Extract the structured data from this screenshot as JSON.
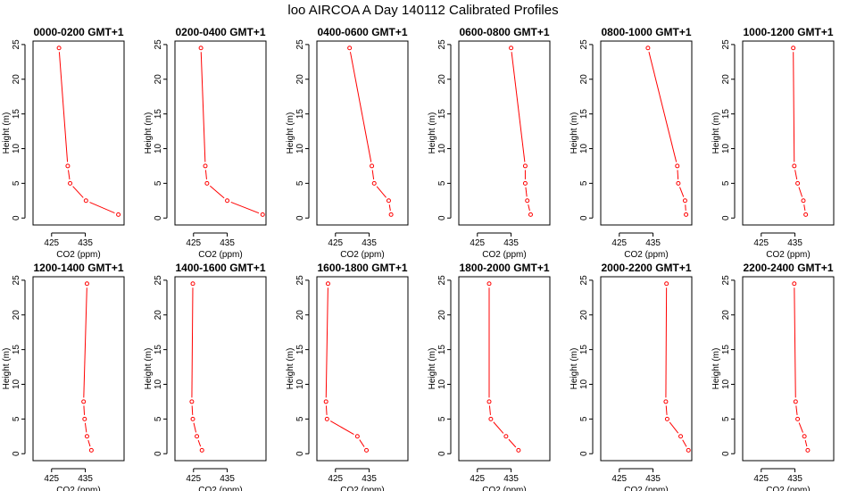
{
  "chart_data": {
    "title": "loo AIRCOA A  Day 140112  Calibrated Profiles",
    "type": "line",
    "layout": "2 rows x 6 columns",
    "xlabel": "CO2 (ppm)",
    "ylabel": "Height (m)",
    "xlim": [
      419.5,
      446.5
    ],
    "ylim": [
      -1,
      25.5
    ],
    "xticks": [
      425,
      435
    ],
    "yticks": [
      0,
      5,
      10,
      15,
      20,
      25
    ],
    "grid": false,
    "legend": "none",
    "colors": {
      "line": "#ff0000",
      "marker_edge": "#ff0000",
      "marker_fill": "#ffffff"
    },
    "panels": [
      {
        "title": "0000-0200 GMT+1",
        "x": [
          444.8,
          435.2,
          430.5,
          429.8,
          427.2
        ],
        "y": [
          0.5,
          2.5,
          5.0,
          7.5,
          24.5
        ]
      },
      {
        "title": "0200-0400 GMT+1",
        "x": [
          445.5,
          435.0,
          429.0,
          428.5,
          427.2
        ],
        "y": [
          0.5,
          2.5,
          5.0,
          7.5,
          24.5
        ]
      },
      {
        "title": "0400-0600 GMT+1",
        "x": [
          441.5,
          440.8,
          436.5,
          435.8,
          429.2
        ],
        "y": [
          0.5,
          2.5,
          5.0,
          7.5,
          24.5
        ]
      },
      {
        "title": "0600-0800 GMT+1",
        "x": [
          440.8,
          439.8,
          439.2,
          439.2,
          435.0
        ],
        "y": [
          0.5,
          2.5,
          5.0,
          7.5,
          24.5
        ]
      },
      {
        "title": "0800-1000 GMT+1",
        "x": [
          444.8,
          444.5,
          442.5,
          442.2,
          433.5
        ],
        "y": [
          0.5,
          2.5,
          5.0,
          7.5,
          24.5
        ]
      },
      {
        "title": "1000-1200 GMT+1",
        "x": [
          438.2,
          437.5,
          435.8,
          434.8,
          434.5
        ],
        "y": [
          0.5,
          2.5,
          5.0,
          7.5,
          24.5
        ]
      },
      {
        "title": "1200-1400 GMT+1",
        "x": [
          436.8,
          435.5,
          434.8,
          434.5,
          435.5
        ],
        "y": [
          0.5,
          2.5,
          5.0,
          7.5,
          24.5
        ]
      },
      {
        "title": "1400-1600 GMT+1",
        "x": [
          427.5,
          426.0,
          424.8,
          424.5,
          424.8
        ],
        "y": [
          0.5,
          2.5,
          5.0,
          7.5,
          24.5
        ]
      },
      {
        "title": "1600-1800 GMT+1",
        "x": [
          434.2,
          431.5,
          422.5,
          422.2,
          422.8
        ],
        "y": [
          0.5,
          2.5,
          5.0,
          7.5,
          24.5
        ]
      },
      {
        "title": "1800-2000 GMT+1",
        "x": [
          437.2,
          433.5,
          429.0,
          428.5,
          428.5
        ],
        "y": [
          0.5,
          2.5,
          5.0,
          7.5,
          24.5
        ]
      },
      {
        "title": "2000-2200 GMT+1",
        "x": [
          445.5,
          443.2,
          439.2,
          438.8,
          439.0
        ],
        "y": [
          0.5,
          2.5,
          5.0,
          7.5,
          24.5
        ]
      },
      {
        "title": "2200-2400 GMT+1",
        "x": [
          438.8,
          437.8,
          435.8,
          435.2,
          434.8
        ],
        "y": [
          0.5,
          2.5,
          5.0,
          7.5,
          24.5
        ]
      }
    ]
  }
}
